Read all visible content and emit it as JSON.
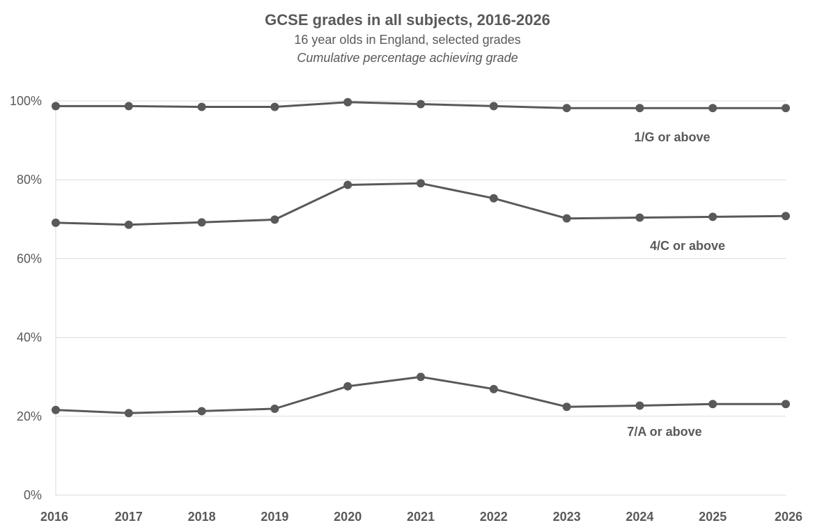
{
  "chart_data": {
    "type": "line",
    "title": "GCSE grades in all subjects, 2016-2026",
    "subtitle": "16 year olds in England, selected grades",
    "note": "Cumulative percentage achieving grade",
    "xlabel": "",
    "ylabel": "",
    "x": [
      "2016",
      "2017",
      "2018",
      "2019",
      "2020",
      "2021",
      "2022",
      "2023",
      "2024",
      "2025",
      "2026"
    ],
    "ylim": [
      0,
      100
    ],
    "yticks": [
      0,
      20,
      40,
      60,
      80,
      100
    ],
    "ytick_labels": [
      "0%",
      "20%",
      "40%",
      "60%",
      "80%",
      "100%"
    ],
    "grid": true,
    "series_color": "#595959",
    "series": [
      {
        "name": "1/G or above",
        "values": [
          98.7,
          98.7,
          98.5,
          98.5,
          99.7,
          99.2,
          98.7,
          98.2,
          98.2,
          98.2,
          98.2
        ]
      },
      {
        "name": "4/C or above",
        "values": [
          69.1,
          68.6,
          69.2,
          69.9,
          78.7,
          79.1,
          75.3,
          70.2,
          70.4,
          70.6,
          70.8
        ]
      },
      {
        "name": "7/A or above",
        "values": [
          21.6,
          20.8,
          21.3,
          21.9,
          27.6,
          30.0,
          26.9,
          22.4,
          22.7,
          23.1,
          23.1
        ]
      }
    ]
  }
}
